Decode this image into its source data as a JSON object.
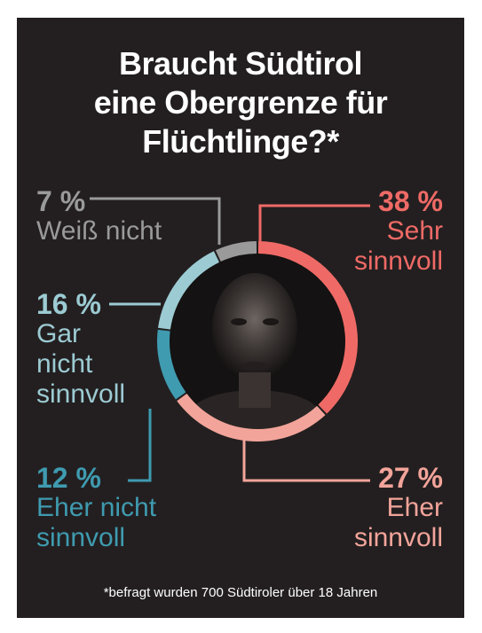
{
  "title_lines": [
    "Braucht Südtirol",
    "eine Obergrenze für",
    "Flüchtlinge?*"
  ],
  "footnote": "*befragt wurden 700 Südtiroler über 18 Jahren",
  "chart_data": {
    "type": "pie",
    "title": "Braucht Südtirol eine Obergrenze für Flüchtlinge?*",
    "unit": "%",
    "slices": [
      {
        "pct_text": "38 %",
        "label_lines": [
          "Sehr",
          "sinnvoll"
        ],
        "value": 38,
        "color": "#ef6a66"
      },
      {
        "pct_text": "27 %",
        "label_lines": [
          "Eher",
          "sinnvoll"
        ],
        "value": 27,
        "color": "#f3a49a"
      },
      {
        "pct_text": "12 %",
        "label_lines": [
          "Eher nicht",
          "sinnvoll"
        ],
        "value": 12,
        "color": "#3f9bb0"
      },
      {
        "pct_text": "16 %",
        "label_lines": [
          "Gar",
          "nicht",
          "sinnvoll"
        ],
        "value": 16,
        "color": "#9ccbd3"
      },
      {
        "pct_text": "7 %",
        "label_lines": [
          "Weiß nicht"
        ],
        "value": 7,
        "color": "#9a9a9a"
      }
    ]
  },
  "center_image": "portrait-photo"
}
